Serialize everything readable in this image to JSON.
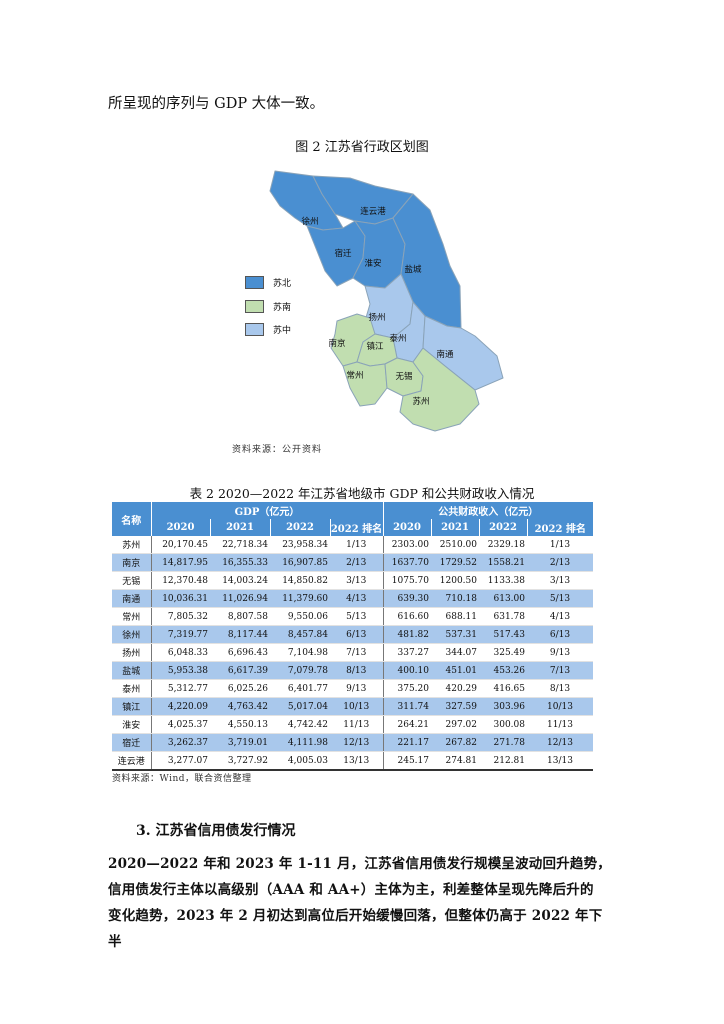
{
  "intro_text": "所呈现的序列与 GDP 大体一致。",
  "figure": {
    "title": "图 2   江苏省行政区划图",
    "legend": [
      {
        "label": "苏北",
        "color": "#4a8fd1"
      },
      {
        "label": "苏南",
        "color": "#c1deb0"
      },
      {
        "label": "苏中",
        "color": "#a9c8ec"
      }
    ],
    "cities": {
      "xuzhou": "徐州",
      "lianyungang": "连云港",
      "suqian": "宿迁",
      "huaian": "淮安",
      "yancheng": "盐城",
      "yangzhou": "扬州",
      "taizhou": "泰州",
      "nanjing": "南京",
      "zhenjiang": "镇江",
      "nantong": "南通",
      "changzhou": "常州",
      "wuxi": "无锡",
      "suzhou": "苏州"
    },
    "source": "资料来源：公开资料"
  },
  "table": {
    "title": "表 2   2020—2022 年江苏省地级市 GDP 和公共财政收入情况",
    "header_name": "名称",
    "header_gdp": "GDP（亿元）",
    "header_revenue": "公共财政收入（亿元）",
    "subheaders": [
      "2020",
      "2021",
      "2022",
      "2022 排名",
      "2020",
      "2021",
      "2022",
      "2022 排名"
    ],
    "rows": [
      [
        "苏州",
        "20,170.45",
        "22,718.34",
        "23,958.34",
        "1/13",
        "2303.00",
        "2510.00",
        "2329.18",
        "1/13"
      ],
      [
        "南京",
        "14,817.95",
        "16,355.33",
        "16,907.85",
        "2/13",
        "1637.70",
        "1729.52",
        "1558.21",
        "2/13"
      ],
      [
        "无锡",
        "12,370.48",
        "14,003.24",
        "14,850.82",
        "3/13",
        "1075.70",
        "1200.50",
        "1133.38",
        "3/13"
      ],
      [
        "南通",
        "10,036.31",
        "11,026.94",
        "11,379.60",
        "4/13",
        "639.30",
        "710.18",
        "613.00",
        "5/13"
      ],
      [
        "常州",
        "7,805.32",
        "8,807.58",
        "9,550.06",
        "5/13",
        "616.60",
        "688.11",
        "631.78",
        "4/13"
      ],
      [
        "徐州",
        "7,319.77",
        "8,117.44",
        "8,457.84",
        "6/13",
        "481.82",
        "537.31",
        "517.43",
        "6/13"
      ],
      [
        "扬州",
        "6,048.33",
        "6,696.43",
        "7,104.98",
        "7/13",
        "337.27",
        "344.07",
        "325.49",
        "9/13"
      ],
      [
        "盐城",
        "5,953.38",
        "6,617.39",
        "7,079.78",
        "8/13",
        "400.10",
        "451.01",
        "453.26",
        "7/13"
      ],
      [
        "泰州",
        "5,312.77",
        "6,025.26",
        "6,401.77",
        "9/13",
        "375.20",
        "420.29",
        "416.65",
        "8/13"
      ],
      [
        "镇江",
        "4,220.09",
        "4,763.42",
        "5,017.04",
        "10/13",
        "311.74",
        "327.59",
        "303.96",
        "10/13"
      ],
      [
        "淮安",
        "4,025.37",
        "4,550.13",
        "4,742.42",
        "11/13",
        "264.21",
        "297.02",
        "300.08",
        "11/13"
      ],
      [
        "宿迁",
        "3,262.37",
        "3,719.01",
        "4,111.98",
        "12/13",
        "221.17",
        "267.82",
        "271.78",
        "12/13"
      ],
      [
        "连云港",
        "3,277.07",
        "3,727.92",
        "4,005.03",
        "13/13",
        "245.17",
        "274.81",
        "212.81",
        "13/13"
      ]
    ],
    "source": "资料来源：Wind，联合资信整理"
  },
  "section_heading": "3.   江苏省信用债发行情况",
  "paragraph_lines": [
    "2020—2022 年和 2023 年 1-11 月，江苏省信用债发行规模呈波动回升趋势，",
    "信用债发行主体以高级别（AAA 和 AA+）主体为主，利差整体呈现先降后升的",
    "变化趋势，2023 年 2 月初达到高位后开始缓慢回落，但整体仍高于 2022 年下半"
  ]
}
